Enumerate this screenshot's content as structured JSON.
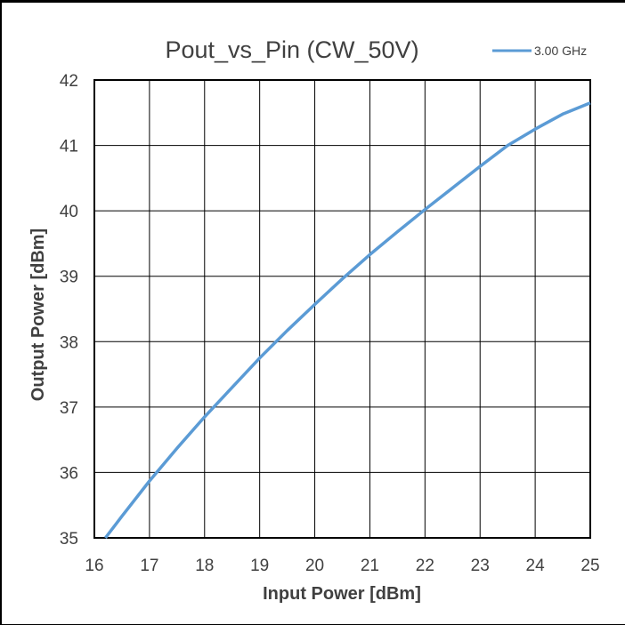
{
  "chart_data": {
    "type": "line",
    "title": "Pout_vs_Pin (CW_50V)",
    "xlabel": "Input Power [dBm]",
    "ylabel": "Output Power [dBm]",
    "xlim": [
      16,
      25
    ],
    "ylim": [
      35,
      42
    ],
    "xticks": [
      "16",
      "17",
      "18",
      "19",
      "20",
      "21",
      "22",
      "23",
      "24",
      "25"
    ],
    "yticks": [
      "35",
      "36",
      "37",
      "38",
      "39",
      "40",
      "41",
      "42"
    ],
    "grid": true,
    "legend_position": "top-right",
    "series": [
      {
        "name": "3.00 GHz",
        "color": "#5b9bd5",
        "x": [
          16.2,
          16.5,
          17.0,
          17.5,
          18.0,
          18.5,
          19.0,
          19.5,
          20.0,
          20.5,
          21.0,
          21.5,
          22.0,
          22.5,
          23.0,
          23.5,
          24.0,
          24.5,
          25.0
        ],
        "y": [
          35.0,
          35.33,
          35.87,
          36.37,
          36.85,
          37.3,
          37.75,
          38.17,
          38.57,
          38.96,
          39.33,
          39.68,
          40.02,
          40.35,
          40.68,
          41.0,
          41.25,
          41.48,
          41.65
        ]
      }
    ]
  }
}
